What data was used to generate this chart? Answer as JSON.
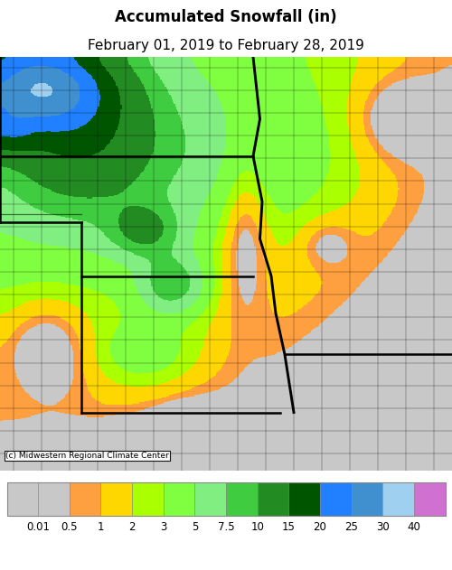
{
  "title_line1": "Accumulated Snowfall (in)",
  "title_line2": "February 01, 2019 to February 28, 2019",
  "title_fontsize": 12,
  "subtitle_fontsize": 11,
  "colorbar_labels": [
    "0.01",
    "0.5",
    "1",
    "2",
    "3",
    "5",
    "7.5",
    "10",
    "15",
    "20",
    "25",
    "30",
    "40"
  ],
  "colorbar_colors": [
    "#C8C8C8",
    "#FFA040",
    "#FFD700",
    "#AAFF00",
    "#80FF40",
    "#80EE80",
    "#40CC40",
    "#228B22",
    "#005500",
    "#2080FF",
    "#4090D0",
    "#A0D0F0",
    "#D070D0"
  ],
  "copyright_text": "(c) Midwestern Regional Climate Center",
  "figure_width": 5.0,
  "figure_height": 6.31,
  "dpi": 100
}
